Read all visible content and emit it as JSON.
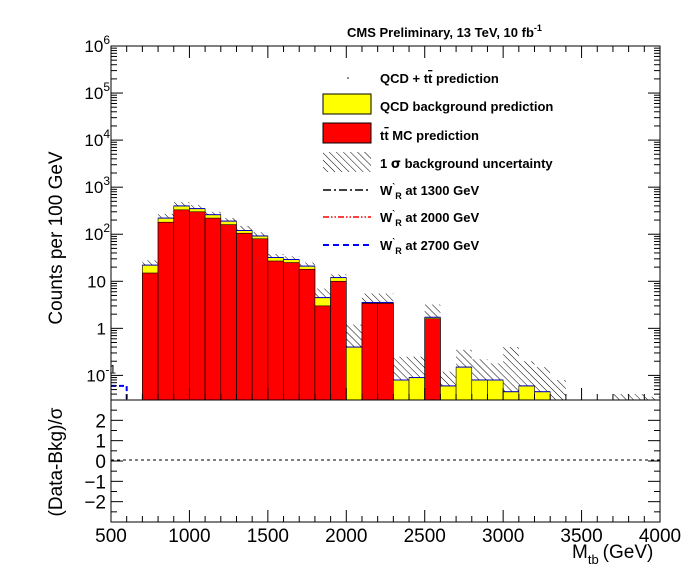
{
  "header": {
    "label": "CMS Preliminary, 13 TeV, 10 fb",
    "lumi_exponent": "-1"
  },
  "axes": {
    "ylabel_top": "Counts per 100 GeV",
    "ylabel_bottom": "(Data-Bkg)/σ",
    "xlabel_main": "M",
    "xlabel_sub": "tb",
    "xlabel_unit": "(GeV)"
  },
  "legend": {
    "total_a": "QCD + t",
    "total_tbar": "t",
    "total_b": " prediction",
    "qcd": "QCD background prediction",
    "ttbar_a": "t",
    "ttbar_tbar": "t",
    "ttbar_b": " MC prediction",
    "unc_sigma": "σ",
    "unc_pre": "1 ",
    "unc_post": " background uncertainty",
    "w1_a": "W",
    "w1_sup": "`",
    "w1_sub": "R",
    "w1_b": " at 1300 GeV",
    "w2_a": "W",
    "w2_sup": "`",
    "w2_sub": "R",
    "w2_b": " at 2000 GeV",
    "w3_a": "W",
    "w3_sup": "`",
    "w3_sub": "R",
    "w3_b": " at 2700 GeV"
  },
  "colors": {
    "qcd": "#ffff00",
    "ttbar": "#ff0000",
    "w1300": "#000000",
    "w2000": "#ff0000",
    "w2700": "#0000ff"
  },
  "chart_data": {
    "type": "bar",
    "stacked": true,
    "log_y": true,
    "bin_edges": [
      500,
      600,
      700,
      800,
      900,
      1000,
      1100,
      1200,
      1300,
      1400,
      1500,
      1600,
      1700,
      1800,
      1900,
      2000,
      2100,
      2200,
      2300,
      2400,
      2500,
      2600,
      2700,
      2800,
      2900,
      3000,
      3100,
      3200,
      3300,
      3400,
      3500,
      3600,
      3700,
      3800,
      3900,
      4000
    ],
    "series": [
      {
        "name": "tt̄ MC prediction",
        "values": [
          0,
          0,
          15,
          180,
          330,
          300,
          220,
          160,
          105,
          80,
          27,
          25,
          18,
          3,
          10,
          0,
          3.4,
          3.4,
          0,
          0,
          1.6,
          0,
          0,
          0,
          0,
          0,
          0,
          0,
          0,
          0,
          0,
          0,
          0,
          0,
          0
        ]
      },
      {
        "name": "QCD background prediction",
        "values": [
          0,
          0,
          7,
          40,
          70,
          50,
          40,
          30,
          15,
          12,
          5,
          4,
          3,
          1.5,
          2,
          0.4,
          0.15,
          0.15,
          0.08,
          0.09,
          0.12,
          0.06,
          0.15,
          0.08,
          0.08,
          0.045,
          0.06,
          0.045,
          0.025,
          0.025,
          0.025,
          0.025,
          0.025,
          0.025,
          0.025
        ]
      }
    ],
    "uncertainty_total": [
      0,
      0,
      28,
      270,
      480,
      420,
      300,
      220,
      150,
      110,
      38,
      34,
      25,
      7,
      14,
      1.2,
      5.5,
      5.5,
      0.25,
      0.25,
      3.2,
      0.12,
      0.35,
      0.22,
      0.18,
      0.4,
      0.2,
      0.15,
      0.08,
      0.03,
      0.03,
      0.03,
      0.04,
      0.04,
      0.035
    ],
    "signals": [
      {
        "name": "W`R at 1300 GeV",
        "values": []
      },
      {
        "name": "W`R at 2000 GeV",
        "values": []
      },
      {
        "name": "W`R at 2700 GeV",
        "x": [
          500,
          600,
          600
        ],
        "y": [
          0.06,
          0.06,
          0.03
        ]
      }
    ],
    "ratio": {
      "ylabel": "(Data-Bkg)/σ",
      "ylim": [
        -3,
        3
      ],
      "reference_line": 0
    },
    "xlim": [
      500,
      4000
    ],
    "ylim": [
      0.03,
      1000000
    ],
    "x_ticks": [
      500,
      1000,
      1500,
      2000,
      2500,
      3000,
      3500,
      4000
    ],
    "y_ticks": [
      {
        "v": 0.1,
        "base": "10",
        "exp": "-1"
      },
      {
        "v": 1,
        "base": "1",
        "exp": ""
      },
      {
        "v": 10,
        "base": "10",
        "exp": ""
      },
      {
        "v": 100,
        "base": "10",
        "exp": "2"
      },
      {
        "v": 1000,
        "base": "10",
        "exp": "3"
      },
      {
        "v": 10000,
        "base": "10",
        "exp": "4"
      },
      {
        "v": 100000,
        "base": "10",
        "exp": "5"
      },
      {
        "v": 1000000,
        "base": "10",
        "exp": "6"
      }
    ],
    "ratio_ticks": [
      -2,
      -1,
      0,
      1,
      2
    ]
  }
}
